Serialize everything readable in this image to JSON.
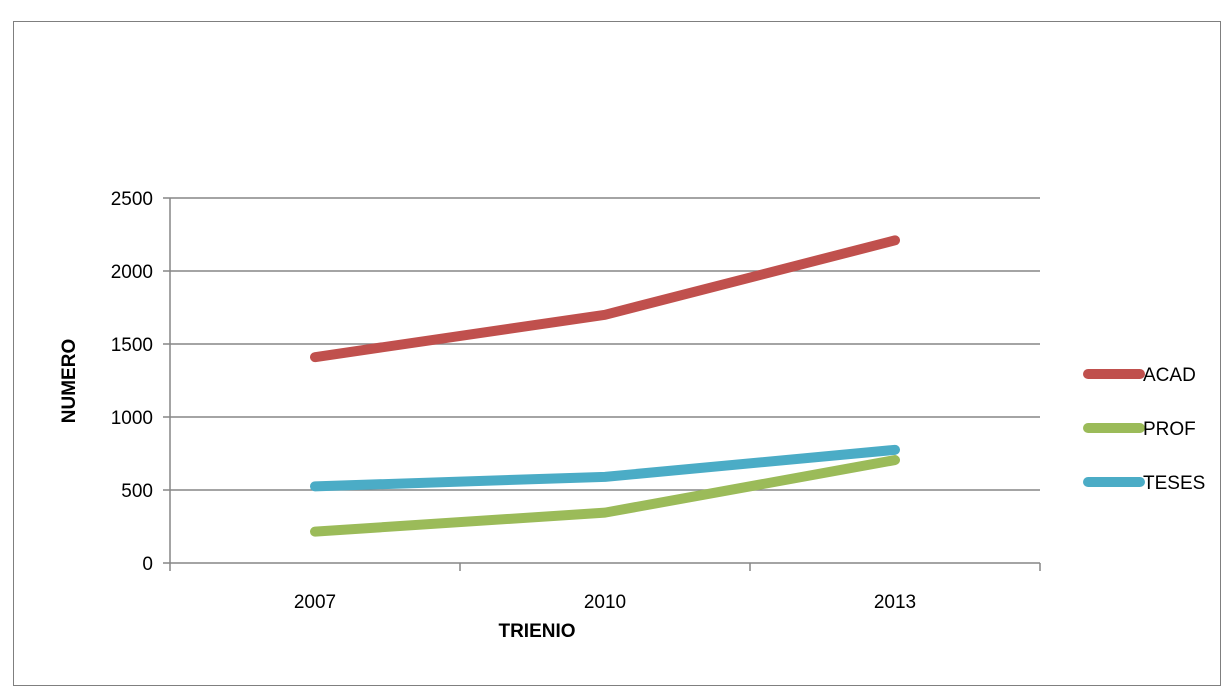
{
  "chart_data": {
    "type": "line",
    "title": "",
    "xlabel": "TRIENIO",
    "ylabel": "NUMERO",
    "categories": [
      "2007",
      "2010",
      "2013"
    ],
    "ylim": [
      0,
      2500
    ],
    "yticks": [
      0,
      500,
      1000,
      1500,
      2000,
      2500
    ],
    "grid": true,
    "legend_position": "right",
    "series": [
      {
        "name": "ACAD",
        "values": [
          1410,
          1700,
          2210
        ],
        "color": "#c0504d"
      },
      {
        "name": "PROF",
        "values": [
          215,
          345,
          705
        ],
        "color": "#9bbb59"
      },
      {
        "name": "TESES",
        "values": [
          525,
          590,
          775
        ],
        "color": "#4bacc6"
      }
    ]
  }
}
